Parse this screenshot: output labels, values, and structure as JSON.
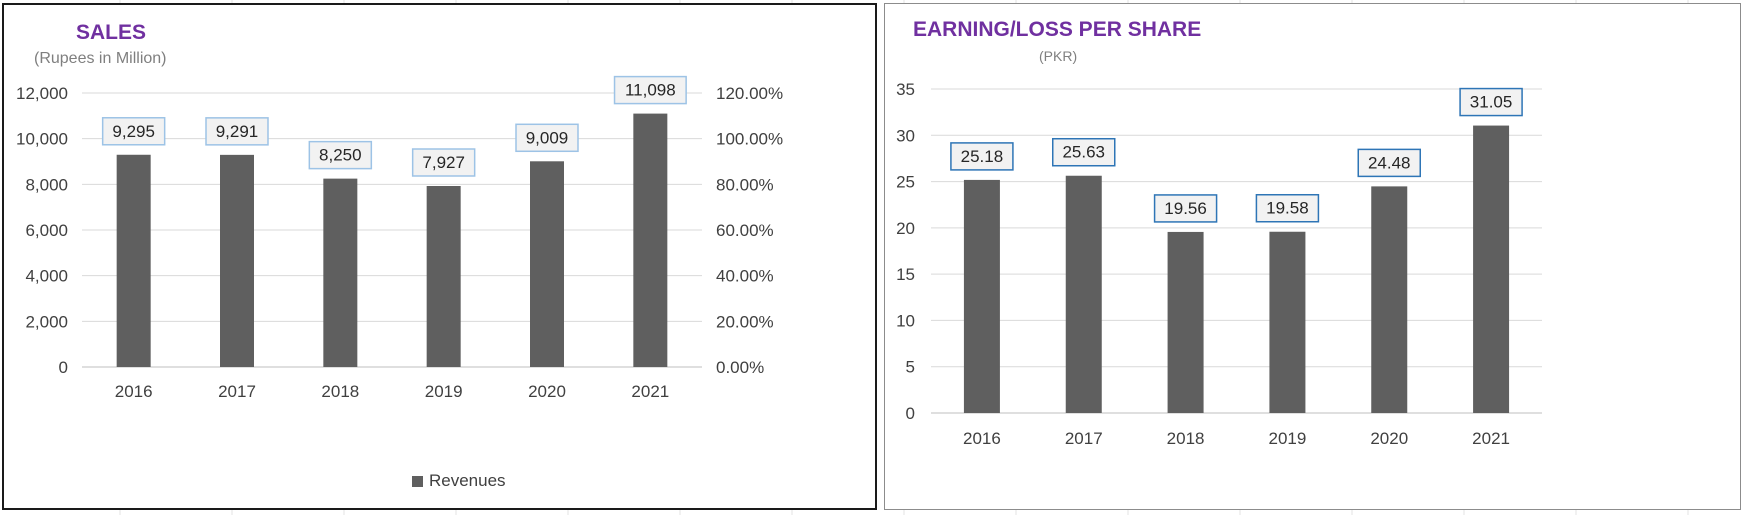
{
  "charts": {
    "sales": {
      "title": "SALES",
      "subtitle": "(Rupees in Million)",
      "legend": "Revenues"
    },
    "eps": {
      "title": "EARNING/LOSS PER SHARE",
      "subtitle": "(PKR)"
    }
  },
  "colors": {
    "bar": "#5f5f5f",
    "title": "#7030a0",
    "sales_label_border": "#9dc3e6",
    "eps_label_border": "#2e75b6",
    "label_fill": "#f2f2f2",
    "gridline": "#d9d9d9"
  },
  "chart_data": [
    {
      "type": "bar",
      "title": "SALES",
      "subtitle": "(Rupees in Million)",
      "categories": [
        "2016",
        "2017",
        "2018",
        "2019",
        "2020",
        "2021"
      ],
      "series": [
        {
          "name": "Revenues",
          "values": [
            9295,
            9291,
            8250,
            7927,
            9009,
            11098
          ]
        }
      ],
      "data_labels": [
        "9,295",
        "9,291",
        "8,250",
        "7,927",
        "9,009",
        "11,098"
      ],
      "ylim": [
        0,
        12000
      ],
      "yticks": [
        "0",
        "2,000",
        "4,000",
        "6,000",
        "8,000",
        "10,000",
        "12,000"
      ],
      "y2ticks": [
        "0.00%",
        "20.00%",
        "40.00%",
        "60.00%",
        "80.00%",
        "100.00%",
        "120.00%"
      ],
      "y2lim": [
        0,
        120
      ],
      "grid": true,
      "legend": "bottom"
    },
    {
      "type": "bar",
      "title": "EARNING/LOSS PER SHARE",
      "subtitle": "(PKR)",
      "categories": [
        "2016",
        "2017",
        "2018",
        "2019",
        "2020",
        "2021"
      ],
      "series": [
        {
          "values": [
            25.18,
            25.63,
            19.56,
            19.58,
            24.48,
            31.05
          ]
        }
      ],
      "data_labels": [
        "25.18",
        "25.63",
        "19.56",
        "19.58",
        "24.48",
        "31.05"
      ],
      "ylim": [
        0,
        35
      ],
      "yticks": [
        "0",
        "5",
        "10",
        "15",
        "20",
        "25",
        "30",
        "35"
      ],
      "grid": true,
      "legend": "none"
    }
  ]
}
